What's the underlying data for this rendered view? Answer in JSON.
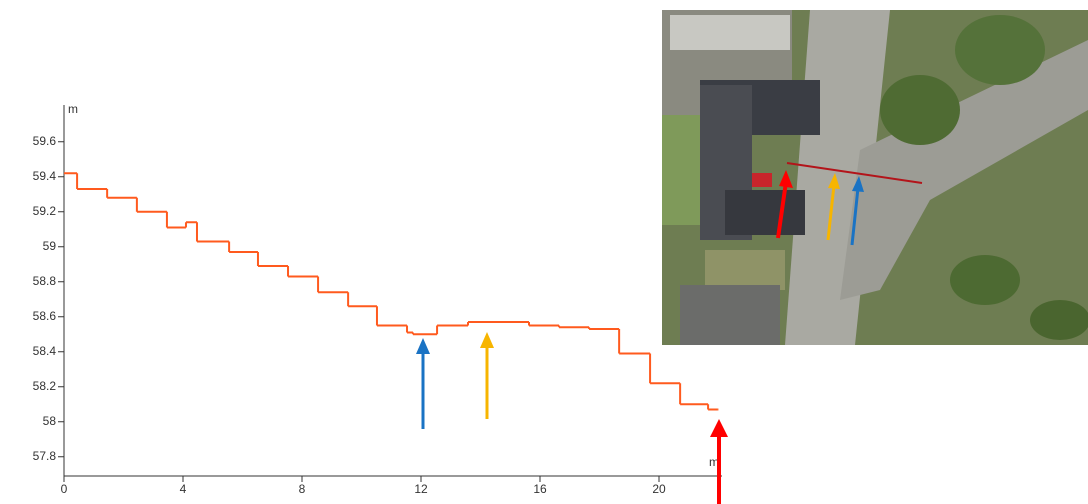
{
  "chart_data": {
    "type": "line",
    "step": true,
    "x": [
      0,
      0.44,
      1.45,
      2.45,
      3.46,
      4.1,
      4.47,
      5.55,
      6.52,
      7.53,
      8.54,
      9.55,
      10.52,
      11.53,
      11.73,
      12.54,
      13.58,
      15.63,
      16.64,
      17.65,
      18.66,
      19.7,
      20.71,
      21.65,
      21.98
    ],
    "series": [
      {
        "color": "#ff5a1e",
        "values": [
          59.42,
          59.33,
          59.28,
          59.2,
          59.11,
          59.14,
          59.03,
          58.97,
          58.89,
          58.83,
          58.74,
          58.66,
          58.55,
          58.51,
          58.5,
          58.55,
          58.57,
          58.55,
          58.54,
          58.53,
          58.39,
          58.22,
          58.1,
          58.07,
          58.07
        ]
      }
    ],
    "xlim": [
      0,
      22
    ],
    "ylim": [
      57.69,
      59.81
    ],
    "xticks": [
      0,
      4,
      8,
      12,
      16,
      20
    ],
    "yticks": [
      57.8,
      58,
      58.2,
      58.4,
      58.6,
      58.8,
      59,
      59.2,
      59.4,
      59.6
    ],
    "xlabel": "m",
    "ylabel": "m"
  }
}
